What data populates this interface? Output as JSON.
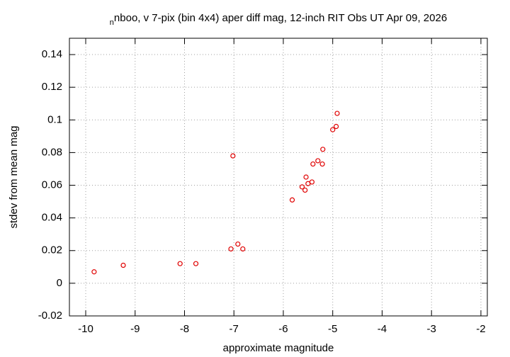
{
  "chart_data": {
    "type": "scatter",
    "title": {
      "subscript": "n",
      "text": "nboo, v 7-pix (bin 4x4) aper diff mag,  12-inch RIT Obs UT Apr 09, 2026"
    },
    "x_label": "approximate magnitude",
    "y_label": "stdev from mean mag",
    "color": "#e00000",
    "grid": true,
    "xlim": [
      -10.33,
      -1.87
    ],
    "ylim": [
      -0.02,
      0.15
    ],
    "xticks": [
      -10,
      -9,
      -8,
      -7,
      -6,
      -5,
      -4,
      -3,
      -2
    ],
    "yticks": [
      -0.02,
      0,
      0.02,
      0.04,
      0.06,
      0.08,
      0.1,
      0.12,
      0.14
    ],
    "x": [
      -9.83,
      -9.24,
      -8.09,
      -7.77,
      -7.06,
      -7.02,
      -6.92,
      -6.82,
      -5.82,
      -5.62,
      -5.56,
      -5.54,
      -5.5,
      -5.42,
      -5.4,
      -5.3,
      -5.21,
      -5.2,
      -5.0,
      -4.93,
      -4.91
    ],
    "values": [
      0.007,
      0.011,
      0.012,
      0.012,
      0.021,
      0.078,
      0.024,
      0.021,
      0.051,
      0.059,
      0.057,
      0.065,
      0.061,
      0.062,
      0.073,
      0.075,
      0.073,
      0.082,
      0.094,
      0.096,
      0.104
    ]
  }
}
